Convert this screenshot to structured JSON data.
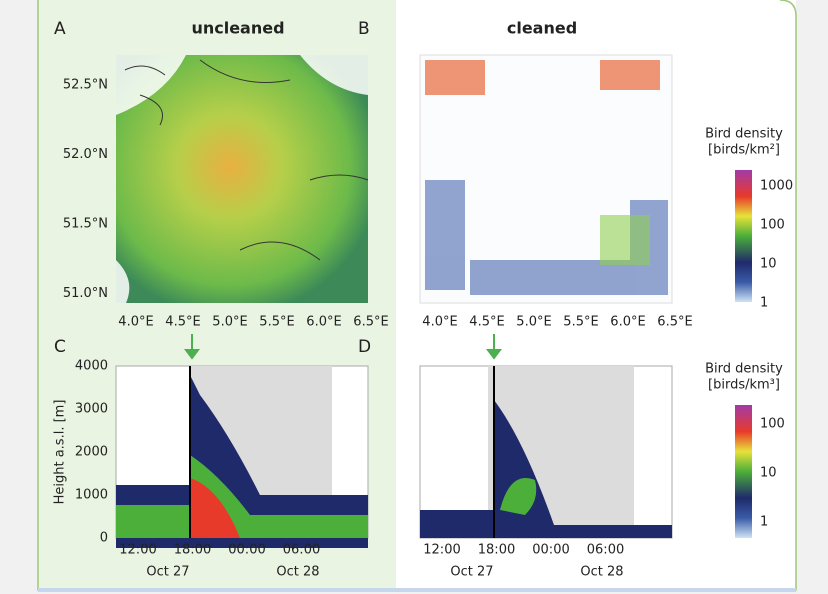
{
  "panels": [
    {
      "letter": "A",
      "title": "uncleaned",
      "x_tick_labels": [
        "4.0°E",
        "4.5°E",
        "5.0°E",
        "5.5°E",
        "6.0°E",
        "6.5°E"
      ],
      "y_tick_labels": [
        "52.5°N",
        "52.0°N",
        "51.5°N",
        "51.0°N"
      ]
    },
    {
      "letter": "B",
      "title": "cleaned",
      "x_tick_labels": [
        "4.0°E",
        "4.5°E",
        "5.0°E",
        "5.5°E",
        "6.0°E",
        "6.5°E"
      ]
    },
    {
      "letter": "C",
      "y_axis_label": "Height a.s.l. [m]",
      "x_tick_labels": [
        "12:00",
        "18:00",
        "00:00",
        "06:00"
      ],
      "date_labels": [
        "Oct 27",
        "Oct 28"
      ],
      "y_tick_labels": [
        "4000",
        "3000",
        "2000",
        "1000",
        "0"
      ]
    },
    {
      "letter": "D",
      "x_tick_labels": [
        "12:00",
        "18:00",
        "00:00",
        "06:00"
      ],
      "date_labels": [
        "Oct 27",
        "Oct 28"
      ]
    }
  ],
  "colorbars": [
    {
      "title": "Bird density",
      "unit": "[birds/km²]",
      "tick_labels": [
        "1000",
        "100",
        "10",
        "1"
      ]
    },
    {
      "title": "Bird density",
      "unit": "[birds/km³]",
      "tick_labels": [
        "100",
        "10",
        "1"
      ]
    }
  ]
}
